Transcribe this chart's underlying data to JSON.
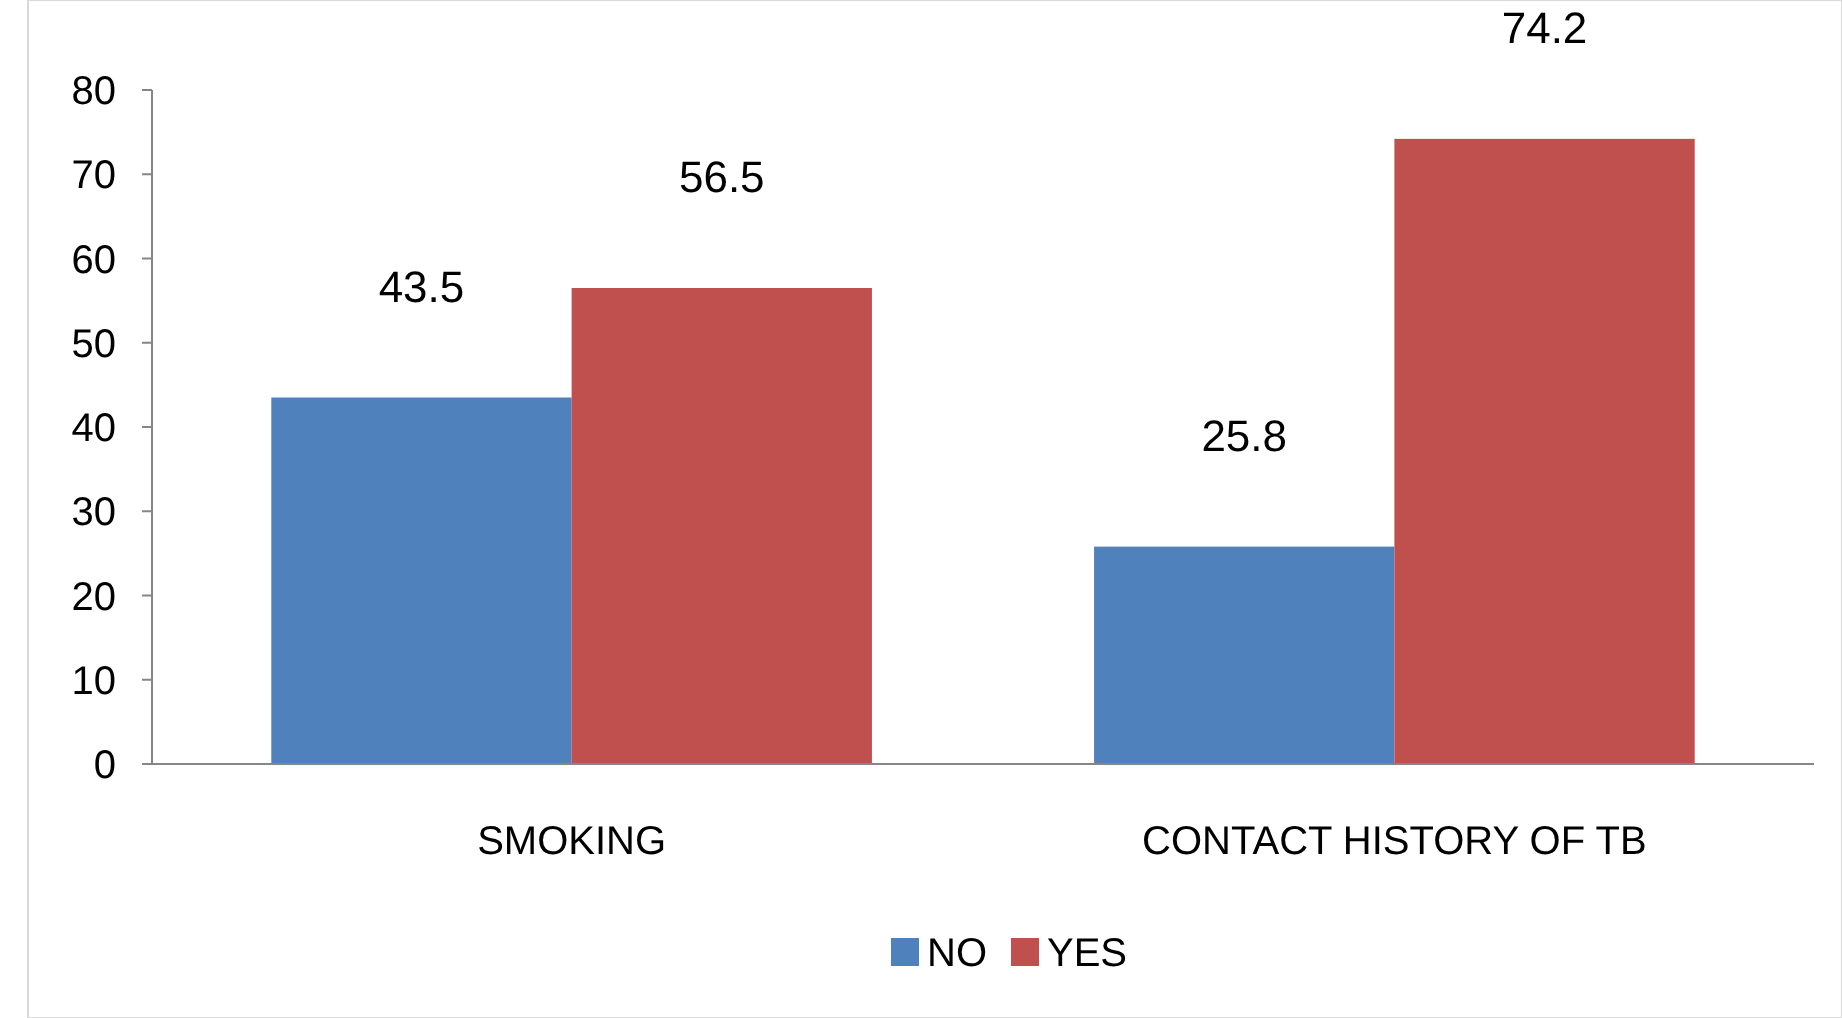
{
  "chart_data": {
    "type": "bar",
    "categories": [
      "SMOKING",
      "CONTACT HISTORY OF TB"
    ],
    "series": [
      {
        "name": "NO",
        "color": "#4f81bd",
        "values": [
          43.5,
          25.8
        ]
      },
      {
        "name": "YES",
        "color": "#c0504d",
        "values": [
          56.5,
          74.2
        ]
      }
    ],
    "ylim": [
      0,
      80
    ],
    "yticks": [
      0,
      10,
      20,
      30,
      40,
      50,
      60,
      70,
      80
    ],
    "grid": false,
    "legend": "bottom",
    "data_labels": true
  }
}
